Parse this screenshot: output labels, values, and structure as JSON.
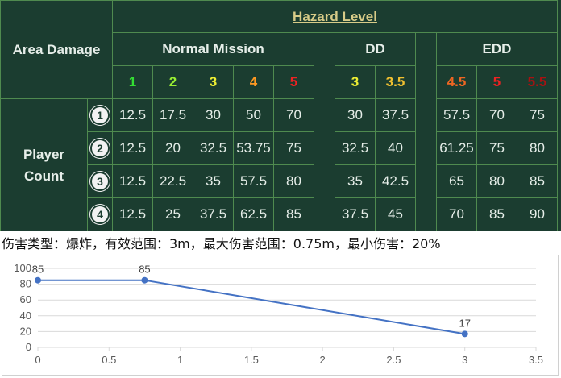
{
  "table": {
    "corner_label": "Area Damage",
    "hazard_label": "Hazard Level",
    "groups": {
      "normal": "Normal Mission",
      "dd": "DD",
      "edd": "EDD"
    },
    "levels": {
      "normal": [
        {
          "label": "1",
          "color": "#33dd33"
        },
        {
          "label": "2",
          "color": "#99ee33"
        },
        {
          "label": "3",
          "color": "#eeee33"
        },
        {
          "label": "4",
          "color": "#ff9922"
        },
        {
          "label": "5",
          "color": "#ee2222"
        }
      ],
      "dd": [
        {
          "label": "3",
          "color": "#eeee33"
        },
        {
          "label": "3.5",
          "color": "#f0c030"
        }
      ],
      "edd": [
        {
          "label": "4.5",
          "color": "#ee6622"
        },
        {
          "label": "5",
          "color": "#ee2222"
        },
        {
          "label": "5.5",
          "color": "#aa1111"
        }
      ]
    },
    "player_count_label_1": "Player",
    "player_count_label_2": "Count",
    "rows": [
      {
        "badge": "1",
        "normal": [
          "12.5",
          "17.5",
          "30",
          "50",
          "70"
        ],
        "dd": [
          "30",
          "37.5"
        ],
        "edd": [
          "57.5",
          "70",
          "75"
        ]
      },
      {
        "badge": "2",
        "normal": [
          "12.5",
          "20",
          "32.5",
          "53.75",
          "75"
        ],
        "dd": [
          "32.5",
          "40"
        ],
        "edd": [
          "61.25",
          "75",
          "80"
        ]
      },
      {
        "badge": "3",
        "normal": [
          "12.5",
          "22.5",
          "35",
          "57.5",
          "80"
        ],
        "dd": [
          "35",
          "42.5"
        ],
        "edd": [
          "65",
          "80",
          "85"
        ]
      },
      {
        "badge": "4",
        "normal": [
          "12.5",
          "25",
          "37.5",
          "62.5",
          "85"
        ],
        "dd": [
          "37.5",
          "45"
        ],
        "edd": [
          "70",
          "85",
          "90"
        ]
      }
    ]
  },
  "note": "伤害类型：爆炸，有效范围：3m，最大伤害范围：0.75m，最小伤害：20%",
  "colors": {
    "table_bg": "#1b3d30",
    "grid": "#4f8a4f",
    "line": "#4472c4"
  },
  "chart_data": {
    "type": "scatter",
    "title": "",
    "xlabel": "",
    "ylabel": "",
    "xlim": [
      0,
      3.5
    ],
    "ylim": [
      0,
      100
    ],
    "xticks": [
      "0",
      "0.5",
      "1",
      "1.5",
      "2",
      "2.5",
      "3",
      "3.5"
    ],
    "yticks": [
      "0",
      "20",
      "40",
      "60",
      "80",
      "100"
    ],
    "grid": true,
    "legend": "none",
    "series": [
      {
        "x": [
          0,
          0.75,
          3
        ],
        "y": [
          85,
          85,
          17
        ],
        "labels": [
          "85",
          "85",
          "17"
        ]
      }
    ]
  }
}
